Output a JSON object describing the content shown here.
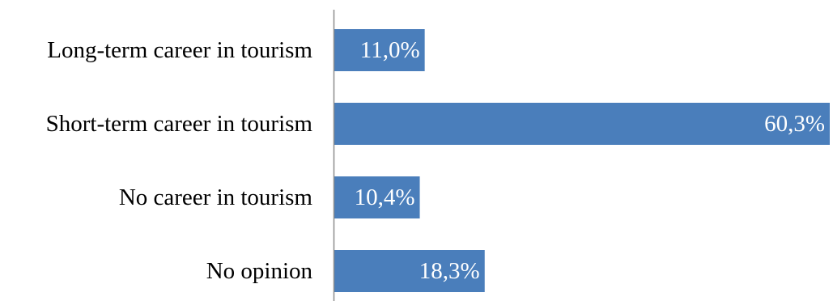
{
  "chart_data": {
    "type": "bar",
    "orientation": "horizontal",
    "categories": [
      "Long-term career in tourism",
      "Short-term career in tourism",
      "No career in tourism",
      "No opinion"
    ],
    "values": [
      11.0,
      60.3,
      10.4,
      18.3
    ],
    "value_labels": [
      "11,0%",
      "60,3%",
      "10,4%",
      "18,3%"
    ],
    "unit": "%",
    "bar_color": "#4a7ebb",
    "xlim": [
      0,
      60.3
    ],
    "grid": false,
    "legend": "none"
  }
}
